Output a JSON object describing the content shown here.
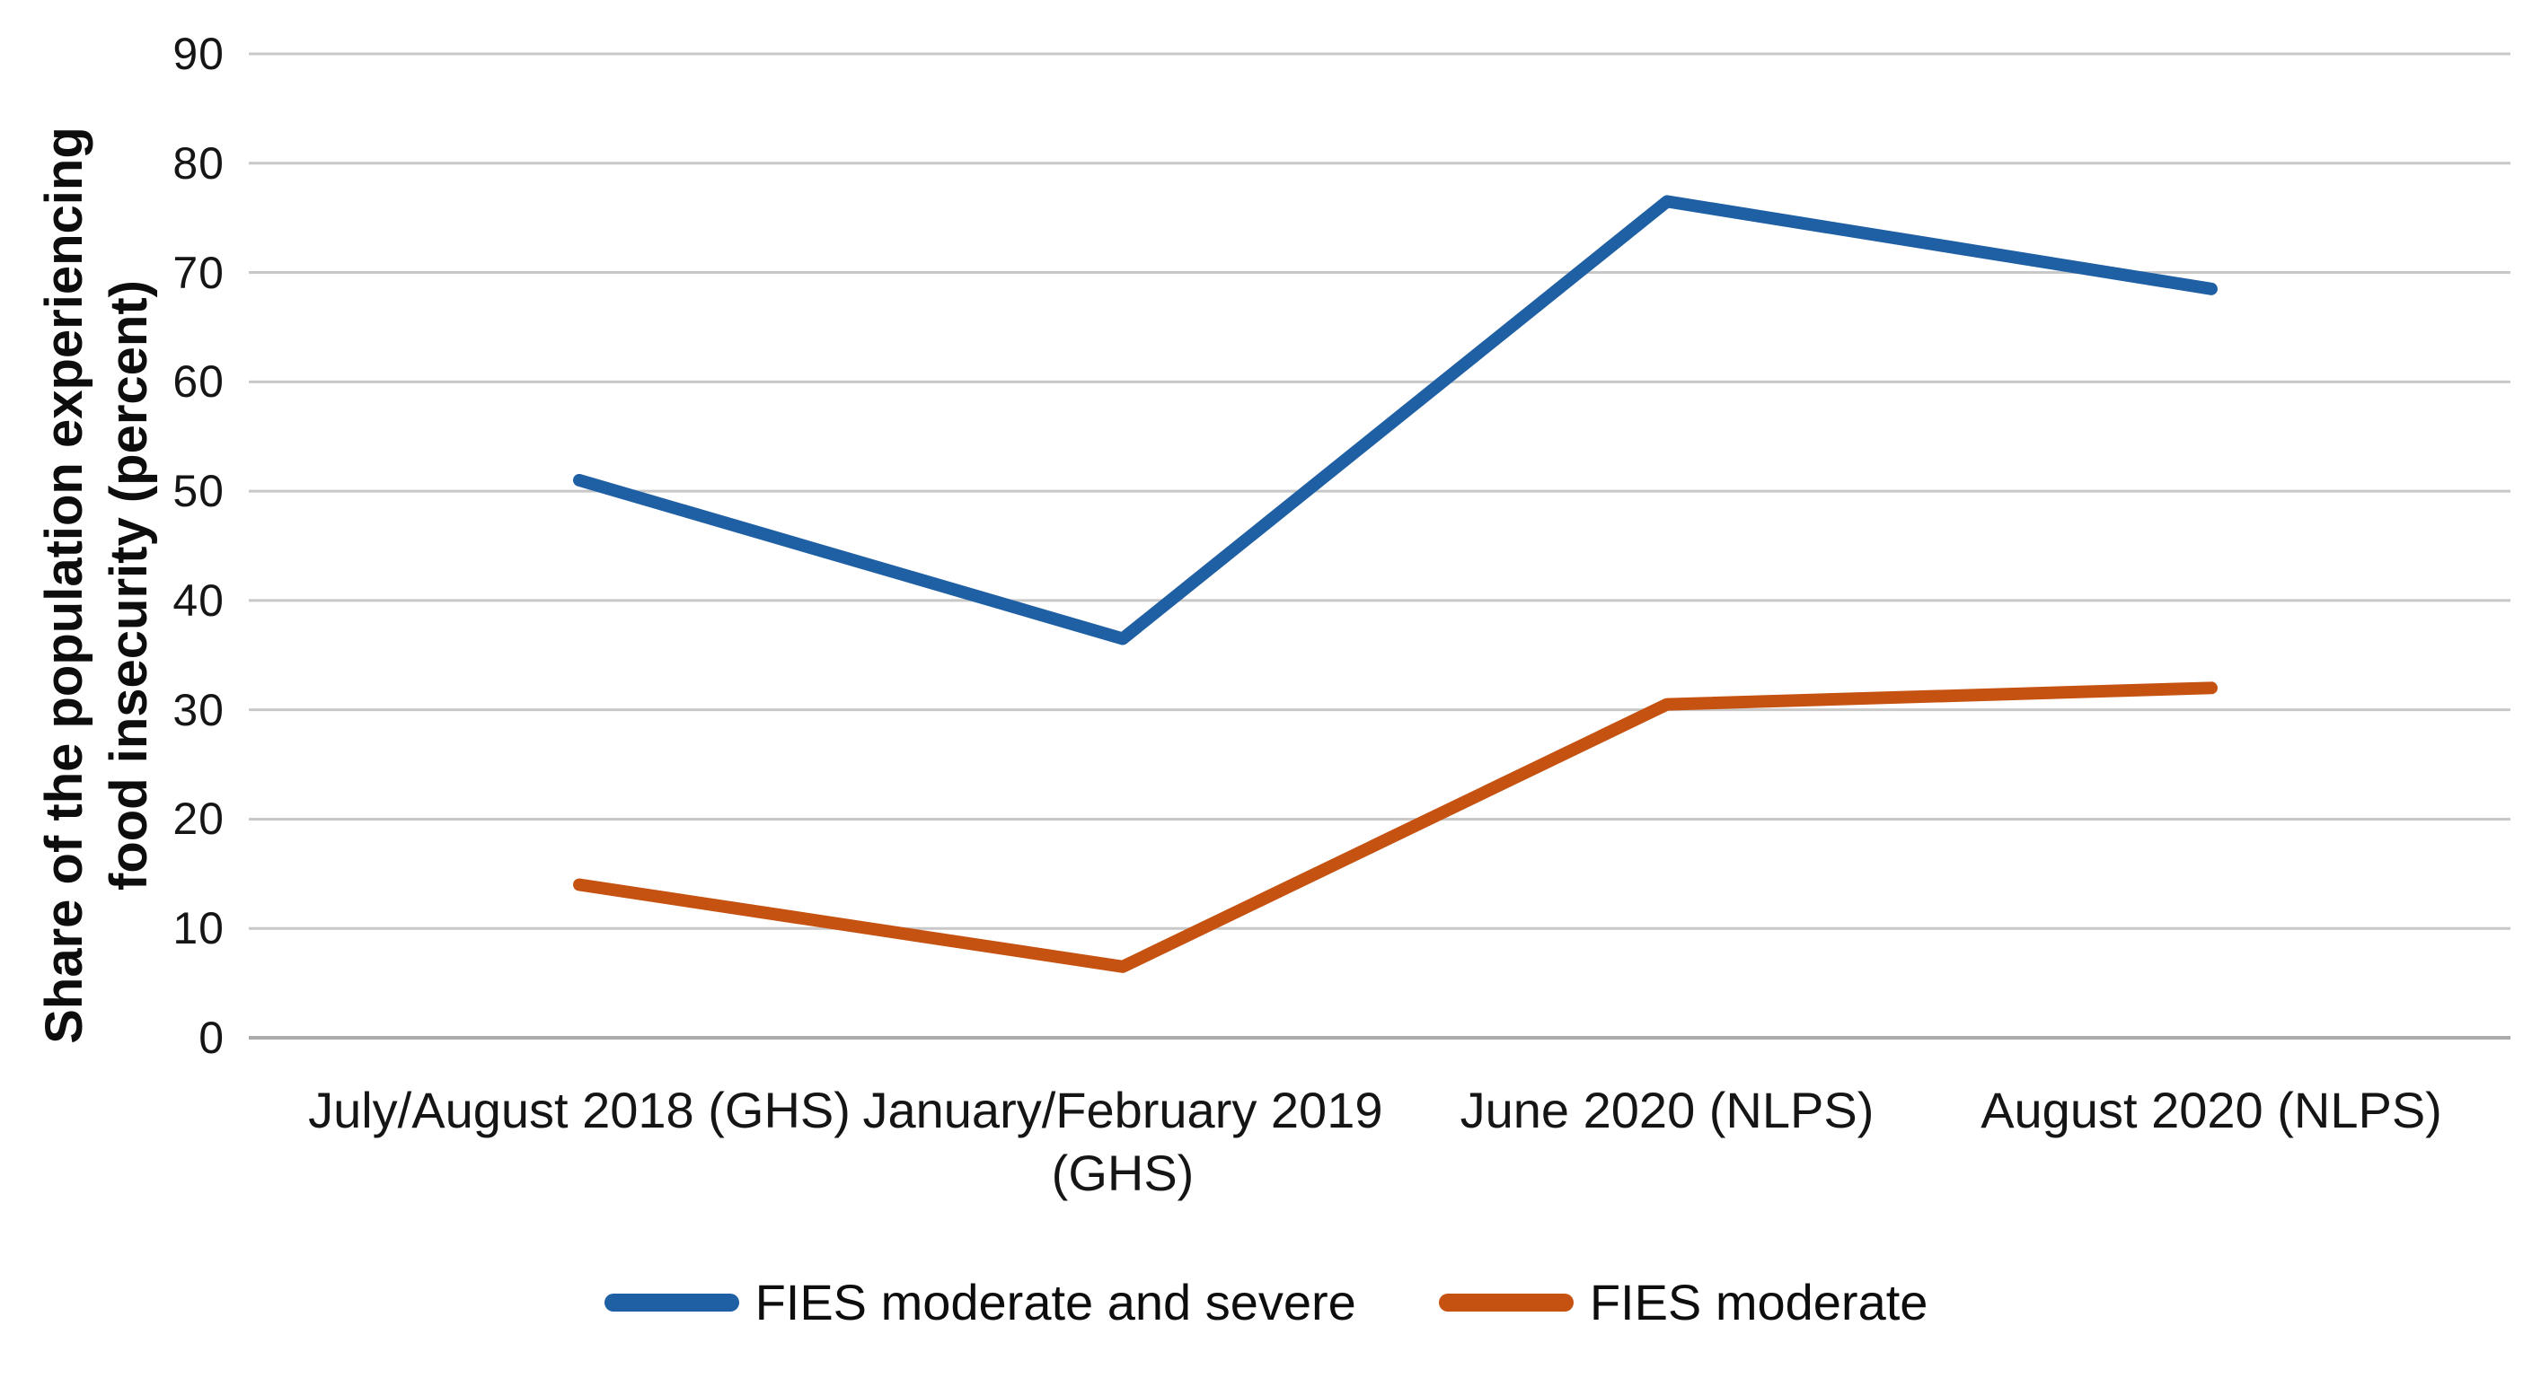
{
  "chart_data": {
    "type": "line",
    "title": "",
    "xlabel": "",
    "ylabel": "Share of the population experiencing food insecurity (percent)",
    "ylabel_lines": [
      "Share of the population experiencing",
      "food insecurity (percent)"
    ],
    "categories": [
      "July/August 2018 (GHS)",
      "January/February 2019 (GHS)",
      "June 2020 (NLPS)",
      "August 2020 (NLPS)"
    ],
    "series": [
      {
        "name": "FIES moderate and severe",
        "color": "#1F5FA3",
        "values": [
          51,
          36.5,
          76.5,
          68.5
        ]
      },
      {
        "name": "FIES moderate",
        "color": "#C55211",
        "values": [
          14,
          6.5,
          30.5,
          32
        ]
      }
    ],
    "ylim": [
      0,
      90
    ],
    "yticks": [
      0,
      10,
      20,
      30,
      40,
      50,
      60,
      70,
      80,
      90
    ],
    "grid": "horizontal",
    "gridline_color": "#c8c8c8",
    "axis_line_color": "#ababab",
    "legend_position": "bottom"
  }
}
